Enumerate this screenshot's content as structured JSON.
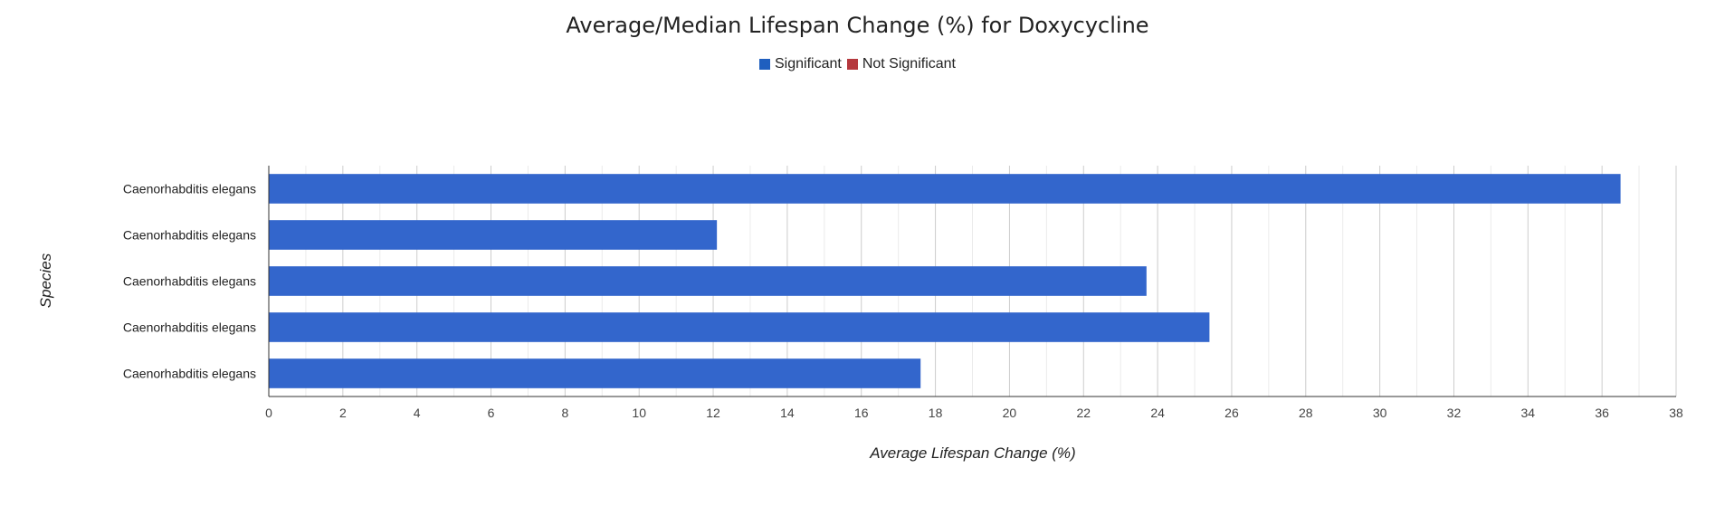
{
  "chart_data": {
    "type": "bar",
    "orientation": "horizontal",
    "title": "Average/Median Lifespan Change (%) for Doxycycline",
    "xlabel": "Average Lifespan Change (%)",
    "ylabel": "Species",
    "categories": [
      "Caenorhabditis elegans",
      "Caenorhabditis elegans",
      "Caenorhabditis elegans",
      "Caenorhabditis elegans",
      "Caenorhabditis elegans"
    ],
    "values": [
      36.5,
      12.1,
      23.7,
      25.4,
      17.6
    ],
    "significance": [
      "Significant",
      "Significant",
      "Significant",
      "Significant",
      "Significant"
    ],
    "xlim": [
      0,
      38
    ],
    "xticks": [
      0,
      2,
      4,
      6,
      8,
      10,
      12,
      14,
      16,
      18,
      20,
      22,
      24,
      26,
      28,
      30,
      32,
      34,
      36,
      38
    ],
    "grid": true,
    "legend": {
      "position": "top",
      "entries": [
        {
          "label": "Significant",
          "color": "#1f5fbf"
        },
        {
          "label": "Not Significant",
          "color": "#b5383d"
        }
      ]
    },
    "bar_color": "#3366cc"
  }
}
